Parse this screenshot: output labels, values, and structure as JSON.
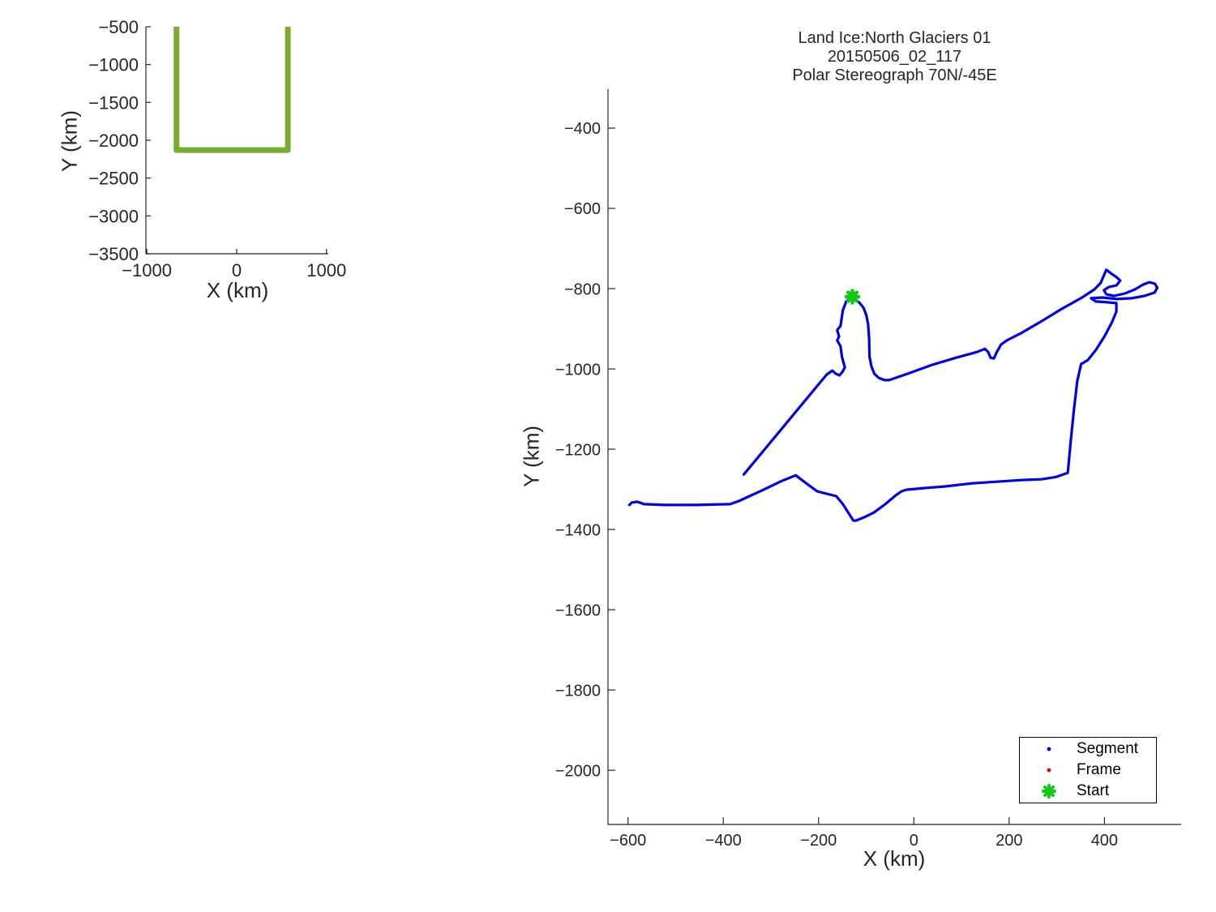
{
  "figure": {
    "background": "#ffffff",
    "text_color": "#262626"
  },
  "chart_data": [
    {
      "type": "line",
      "name": "coverage-overview",
      "title": [],
      "xlabel": "X (km)",
      "ylabel": "Y (km)",
      "xlim": [
        -1010,
        1020
      ],
      "ylim": [
        -3500,
        -500
      ],
      "grid": false,
      "xticks": [
        -1000,
        0,
        1000
      ],
      "yticks": [
        -500,
        -1000,
        -1500,
        -2000,
        -2500,
        -3000,
        -3500
      ],
      "series": [
        {
          "name": "coverage-bounds",
          "color": "#77ac30",
          "width": 7,
          "cap": "butt",
          "points": [
            [
              -670,
              -500
            ],
            [
              -670,
              -2130
            ],
            [
              570,
              -2130
            ],
            [
              570,
              -500
            ]
          ]
        }
      ],
      "markers": [],
      "legend": []
    },
    {
      "type": "line",
      "name": "flight-track",
      "title": [
        "Land Ice:North Glaciers 01",
        "20150506_02_117",
        "Polar Stereograph 70N/-45E"
      ],
      "xlabel": "X (km)",
      "ylabel": "Y (km)",
      "xlim": [
        -642,
        561
      ],
      "ylim": [
        -2135,
        -303
      ],
      "grid": false,
      "xticks": [
        -600,
        -400,
        -200,
        0,
        200,
        400
      ],
      "yticks": [
        -400,
        -600,
        -800,
        -1000,
        -1200,
        -1400,
        -1600,
        -1800,
        -2000
      ],
      "series": [
        {
          "name": "Segment",
          "color": "#0000e8",
          "width": 3.2,
          "cap": "round",
          "points": [
            [
              -357,
              -1263
            ],
            [
              -183,
              -1014
            ],
            [
              -178,
              -1010
            ],
            [
              -171,
              -1004
            ],
            [
              -164,
              -1012
            ],
            [
              -156,
              -1016
            ],
            [
              -149,
              -1006
            ],
            [
              -145,
              -996
            ],
            [
              -151,
              -970
            ],
            [
              -154,
              -943
            ],
            [
              -161,
              -929
            ],
            [
              -157,
              -919
            ],
            [
              -161,
              -903
            ],
            [
              -154,
              -893
            ],
            [
              -152,
              -877
            ],
            [
              -149,
              -854
            ],
            [
              -142,
              -832
            ],
            [
              -132,
              -822
            ],
            [
              -125,
              -826
            ],
            [
              -115,
              -834
            ],
            [
              -106,
              -847
            ],
            [
              -100,
              -865
            ],
            [
              -96,
              -889
            ],
            [
              -94,
              -925
            ],
            [
              -93,
              -970
            ],
            [
              -89,
              -994
            ],
            [
              -83,
              -1012
            ],
            [
              -74,
              -1022
            ],
            [
              -62,
              -1028
            ],
            [
              -52,
              -1028
            ],
            [
              -13,
              -1012
            ],
            [
              38,
              -990
            ],
            [
              89,
              -972
            ],
            [
              132,
              -958
            ],
            [
              149,
              -950
            ],
            [
              156,
              -958
            ],
            [
              161,
              -972
            ],
            [
              168,
              -974
            ],
            [
              174,
              -958
            ],
            [
              183,
              -939
            ],
            [
              195,
              -929
            ],
            [
              225,
              -911
            ],
            [
              268,
              -881
            ],
            [
              311,
              -850
            ],
            [
              353,
              -822
            ],
            [
              379,
              -802
            ],
            [
              392,
              -786
            ],
            [
              404,
              -753
            ],
            [
              416,
              -764
            ],
            [
              426,
              -772
            ],
            [
              433,
              -780
            ],
            [
              425,
              -792
            ],
            [
              409,
              -796
            ],
            [
              399,
              -804
            ],
            [
              404,
              -814
            ],
            [
              420,
              -818
            ],
            [
              443,
              -812
            ],
            [
              464,
              -802
            ],
            [
              481,
              -790
            ],
            [
              494,
              -784
            ],
            [
              506,
              -788
            ],
            [
              511,
              -798
            ],
            [
              505,
              -810
            ],
            [
              484,
              -818
            ],
            [
              457,
              -824
            ],
            [
              426,
              -826
            ],
            [
              396,
              -822
            ],
            [
              372,
              -824
            ],
            [
              382,
              -832
            ],
            [
              406,
              -834
            ],
            [
              425,
              -836
            ],
            [
              425,
              -857
            ],
            [
              416,
              -883
            ],
            [
              401,
              -917
            ],
            [
              382,
              -953
            ],
            [
              365,
              -978
            ],
            [
              351,
              -988
            ],
            [
              343,
              -1030
            ],
            [
              336,
              -1101
            ],
            [
              329,
              -1182
            ],
            [
              324,
              -1248
            ],
            [
              323,
              -1259
            ],
            [
              299,
              -1269
            ],
            [
              268,
              -1275
            ],
            [
              225,
              -1277
            ],
            [
              174,
              -1281
            ],
            [
              123,
              -1285
            ],
            [
              64,
              -1293
            ],
            [
              21,
              -1297
            ],
            [
              -16,
              -1301
            ],
            [
              -26,
              -1305
            ],
            [
              -38,
              -1315
            ],
            [
              -60,
              -1337
            ],
            [
              -84,
              -1358
            ],
            [
              -105,
              -1370
            ],
            [
              -122,
              -1378
            ],
            [
              -127,
              -1378
            ],
            [
              -149,
              -1337
            ],
            [
              -163,
              -1317
            ],
            [
              -203,
              -1305
            ],
            [
              -226,
              -1285
            ],
            [
              -248,
              -1265
            ],
            [
              -277,
              -1279
            ],
            [
              -319,
              -1303
            ],
            [
              -345,
              -1317
            ],
            [
              -367,
              -1329
            ],
            [
              -386,
              -1337
            ],
            [
              -455,
              -1339
            ],
            [
              -523,
              -1339
            ],
            [
              -566,
              -1337
            ],
            [
              -581,
              -1331
            ],
            [
              -592,
              -1333
            ],
            [
              -597,
              -1339
            ]
          ]
        }
      ],
      "markers": [
        {
          "name": "Start",
          "x": -129,
          "y": -820,
          "color": "#12c912",
          "shape": "asterisk",
          "size": 15
        }
      ],
      "legend": [
        {
          "label": "Segment",
          "color": "#0000e8",
          "marker": "dot"
        },
        {
          "label": "Frame",
          "color": "#dd0000",
          "marker": "dot"
        },
        {
          "label": "Start",
          "color": "#12c912",
          "marker": "asterisk"
        }
      ]
    }
  ]
}
